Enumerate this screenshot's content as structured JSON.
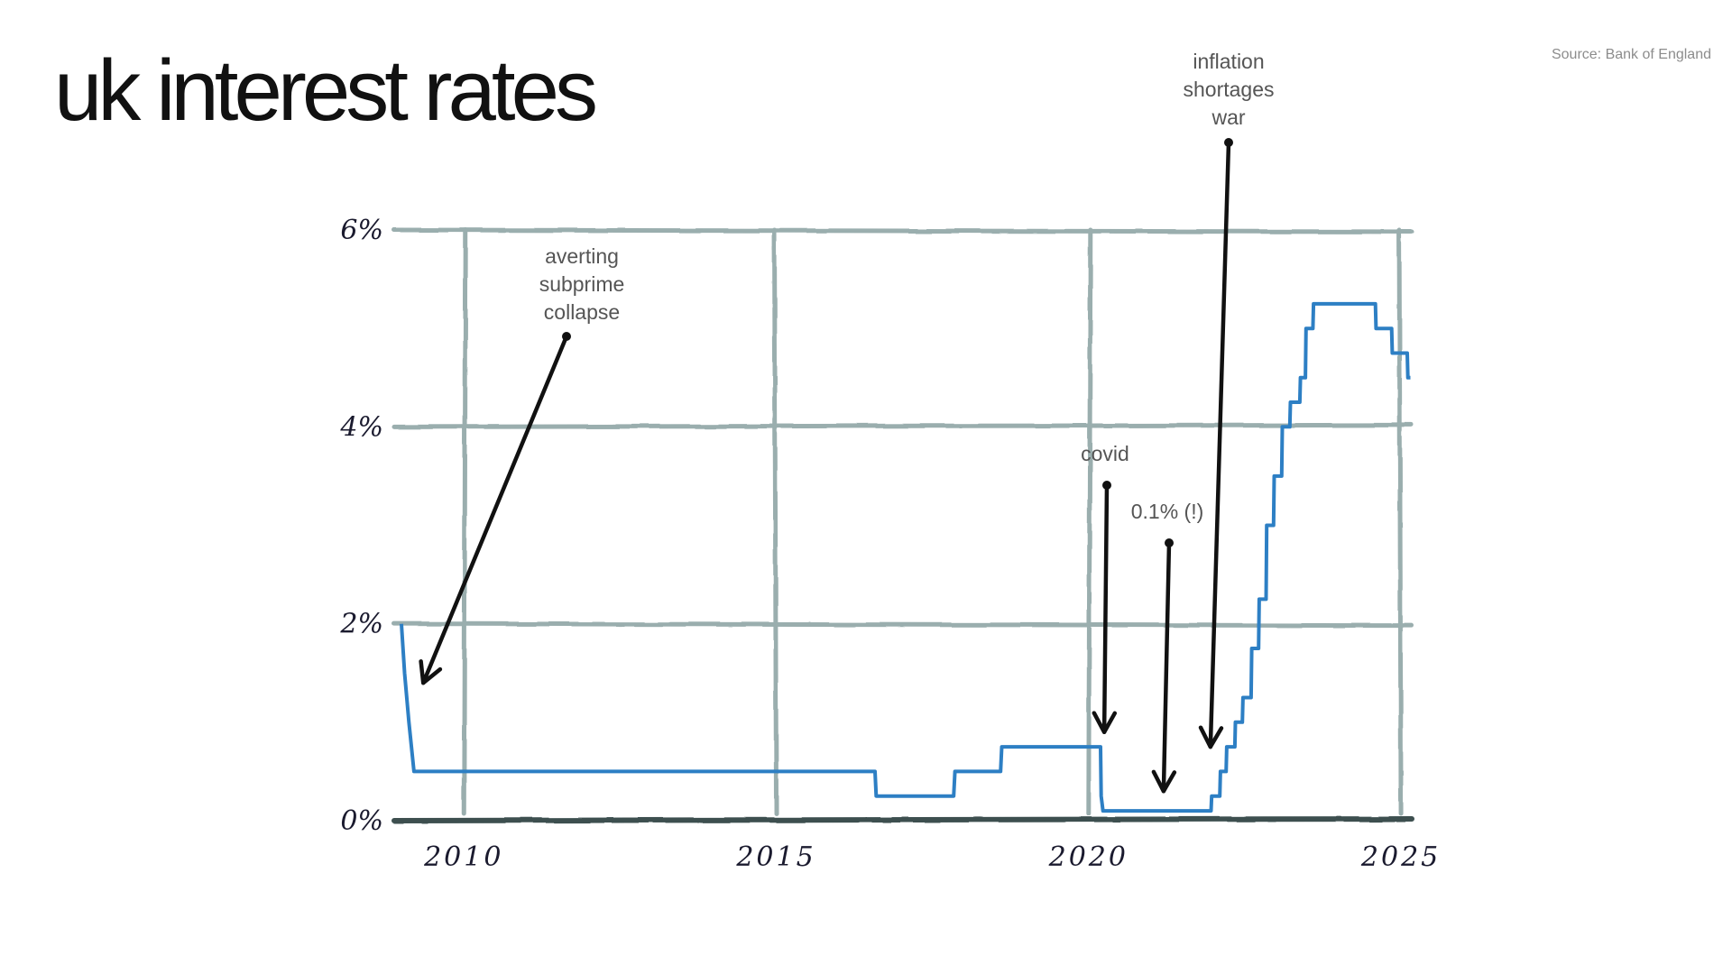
{
  "title": "uk interest rates",
  "source": "Source: Bank of England",
  "colors": {
    "series": "#2d7fc4",
    "grid": "#9aaeae",
    "baseline": "#3c5050",
    "annotation_text": "#555555",
    "arrows": "#111111"
  },
  "chart_data": {
    "type": "line",
    "title": "uk interest rates",
    "xlabel": "",
    "ylabel": "",
    "x_ticks": [
      "2010",
      "2015",
      "2020",
      "2025"
    ],
    "y_ticks": [
      "0%",
      "2%",
      "4%",
      "6%"
    ],
    "xlim": [
      2009,
      2025.1
    ],
    "ylim": [
      0,
      6
    ],
    "grid": true,
    "series": [
      {
        "points": [
          [
            2009.0,
            2.0
          ],
          [
            2009.05,
            1.5
          ],
          [
            2009.12,
            1.0
          ],
          [
            2009.2,
            0.5
          ],
          [
            2016.58,
            0.5
          ],
          [
            2016.6,
            0.25
          ],
          [
            2017.84,
            0.25
          ],
          [
            2017.86,
            0.5
          ],
          [
            2018.59,
            0.5
          ],
          [
            2018.61,
            0.75
          ],
          [
            2020.19,
            0.75
          ],
          [
            2020.2,
            0.25
          ],
          [
            2020.23,
            0.1
          ],
          [
            2021.96,
            0.1
          ],
          [
            2021.97,
            0.25
          ],
          [
            2022.1,
            0.25
          ],
          [
            2022.11,
            0.5
          ],
          [
            2022.2,
            0.5
          ],
          [
            2022.21,
            0.75
          ],
          [
            2022.34,
            0.75
          ],
          [
            2022.35,
            1.0
          ],
          [
            2022.46,
            1.0
          ],
          [
            2022.47,
            1.25
          ],
          [
            2022.6,
            1.25
          ],
          [
            2022.61,
            1.75
          ],
          [
            2022.72,
            1.75
          ],
          [
            2022.73,
            2.25
          ],
          [
            2022.84,
            2.25
          ],
          [
            2022.85,
            3.0
          ],
          [
            2022.96,
            3.0
          ],
          [
            2022.97,
            3.5
          ],
          [
            2023.09,
            3.5
          ],
          [
            2023.1,
            4.0
          ],
          [
            2023.22,
            4.0
          ],
          [
            2023.23,
            4.25
          ],
          [
            2023.38,
            4.25
          ],
          [
            2023.39,
            4.5
          ],
          [
            2023.47,
            4.5
          ],
          [
            2023.48,
            5.0
          ],
          [
            2023.59,
            5.0
          ],
          [
            2023.6,
            5.25
          ],
          [
            2024.59,
            5.25
          ],
          [
            2024.6,
            5.0
          ],
          [
            2024.85,
            5.0
          ],
          [
            2024.86,
            4.75
          ],
          [
            2025.1,
            4.75
          ],
          [
            2025.11,
            4.5
          ],
          [
            2025.15,
            4.5
          ]
        ]
      }
    ],
    "annotations": [
      {
        "id": "subprime",
        "lines": [
          "averting",
          "subprime",
          "collapse"
        ],
        "target": [
          2009.35,
          1.4
        ]
      },
      {
        "id": "covid",
        "text": "covid",
        "target": [
          2020.25,
          0.9
        ]
      },
      {
        "id": "lowpoint",
        "text": "0.1% (!)",
        "target": [
          2021.2,
          0.3
        ]
      },
      {
        "id": "inflation",
        "lines": [
          "inflation",
          "shortages",
          "war"
        ],
        "target": [
          2021.95,
          0.75
        ]
      }
    ]
  }
}
